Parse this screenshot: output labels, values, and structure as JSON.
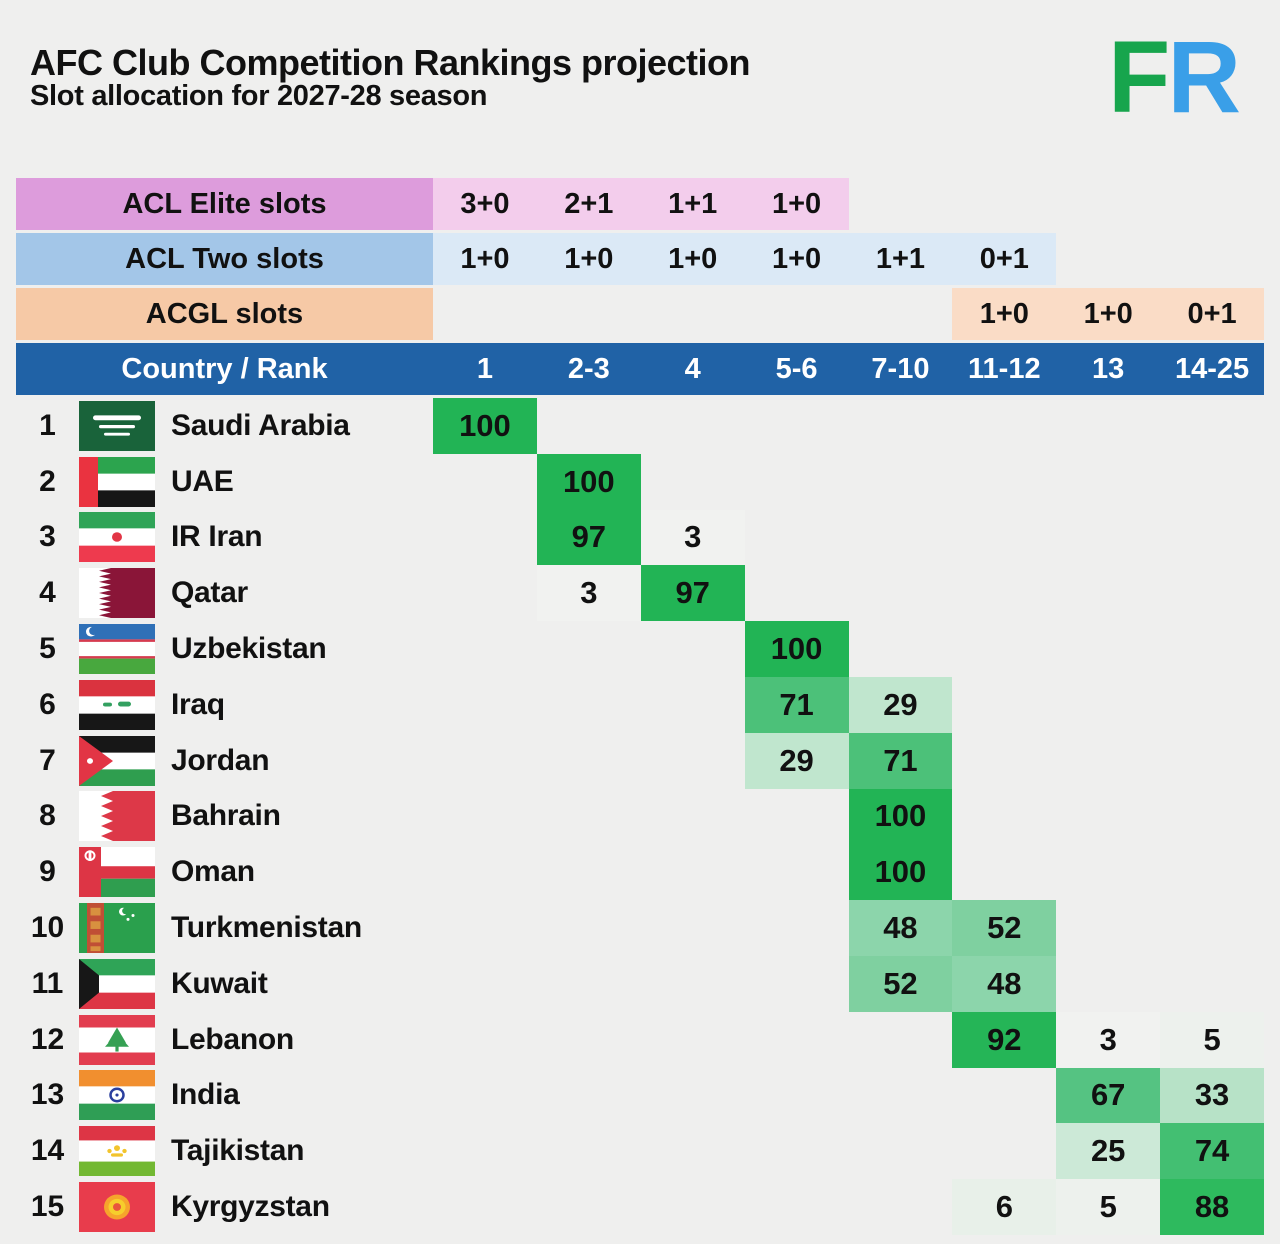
{
  "title": "AFC Club Competition Rankings projection",
  "subtitle": "Slot allocation for 2027-28 season",
  "logo": {
    "f": "F",
    "r": "R",
    "f_color": "#17a54d",
    "r_color": "#3a9fe8"
  },
  "colors": {
    "page_bg": "#efefee",
    "text": "#111111",
    "rank_header_bg": "#2062a6",
    "rank_header_text": "#ffffff",
    "value_colors": {
      "100": "#22b455",
      "97": "#22b455",
      "92": "#25b557",
      "88": "#2eba5e",
      "74": "#43bf72",
      "71": "#4cc179",
      "67": "#55c382",
      "52": "#7fd0a0",
      "48": "#8cd5ab",
      "33": "#b7e2c7",
      "29": "#c0e6ce",
      "25": "#cce9d7",
      "6": "#e8f0e9",
      "5": "#edf1ed",
      "3": "#f1f2f0"
    }
  },
  "chart_data": {
    "type": "heatmap",
    "title": "AFC Club Competition Rankings projection",
    "subtitle": "Slot allocation for 2027-28 season",
    "columns": [
      "1",
      "2-3",
      "4",
      "5-6",
      "7-10",
      "11-12",
      "13",
      "14-25"
    ],
    "rank_header_label": "Country / Rank",
    "slot_rows": [
      {
        "id": "acl-elite",
        "label": "ACL Elite slots",
        "label_bg": "#dd9cdc",
        "value_bg": "#f3cdec",
        "start_index": 0,
        "values": [
          "3+0",
          "2+1",
          "1+1",
          "1+0"
        ]
      },
      {
        "id": "acl-two",
        "label": "ACL Two slots",
        "label_bg": "#a3c6e8",
        "value_bg": "#dbe9f6",
        "start_index": 0,
        "values": [
          "1+0",
          "1+0",
          "1+0",
          "1+0",
          "1+1",
          "0+1"
        ]
      },
      {
        "id": "acgl",
        "label": "ACGL slots",
        "label_bg": "#f6c9a6",
        "value_bg": "#fadcc6",
        "start_index": 5,
        "values": [
          "1+0",
          "1+0",
          "0+1"
        ]
      }
    ],
    "rows": [
      {
        "rank": "1",
        "country": "Saudi Arabia",
        "flag": "saudi-arabia-flag",
        "values": [
          100,
          null,
          null,
          null,
          null,
          null,
          null,
          null
        ]
      },
      {
        "rank": "2",
        "country": "UAE",
        "flag": "uae-flag",
        "values": [
          null,
          100,
          null,
          null,
          null,
          null,
          null,
          null
        ]
      },
      {
        "rank": "3",
        "country": "IR Iran",
        "flag": "iran-flag",
        "values": [
          null,
          97,
          3,
          null,
          null,
          null,
          null,
          null
        ]
      },
      {
        "rank": "4",
        "country": "Qatar",
        "flag": "qatar-flag",
        "values": [
          null,
          3,
          97,
          null,
          null,
          null,
          null,
          null
        ]
      },
      {
        "rank": "5",
        "country": "Uzbekistan",
        "flag": "uzbekistan-flag",
        "values": [
          null,
          null,
          null,
          100,
          null,
          null,
          null,
          null
        ]
      },
      {
        "rank": "6",
        "country": "Iraq",
        "flag": "iraq-flag",
        "values": [
          null,
          null,
          null,
          71,
          29,
          null,
          null,
          null
        ]
      },
      {
        "rank": "7",
        "country": "Jordan",
        "flag": "jordan-flag",
        "values": [
          null,
          null,
          null,
          29,
          71,
          null,
          null,
          null
        ]
      },
      {
        "rank": "8",
        "country": "Bahrain",
        "flag": "bahrain-flag",
        "values": [
          null,
          null,
          null,
          null,
          100,
          null,
          null,
          null
        ]
      },
      {
        "rank": "9",
        "country": "Oman",
        "flag": "oman-flag",
        "values": [
          null,
          null,
          null,
          null,
          100,
          null,
          null,
          null
        ]
      },
      {
        "rank": "10",
        "country": "Turkmenistan",
        "flag": "turkmenistan-flag",
        "values": [
          null,
          null,
          null,
          null,
          48,
          52,
          null,
          null
        ]
      },
      {
        "rank": "11",
        "country": "Kuwait",
        "flag": "kuwait-flag",
        "values": [
          null,
          null,
          null,
          null,
          52,
          48,
          null,
          null
        ]
      },
      {
        "rank": "12",
        "country": "Lebanon",
        "flag": "lebanon-flag",
        "values": [
          null,
          null,
          null,
          null,
          null,
          92,
          3,
          5
        ]
      },
      {
        "rank": "13",
        "country": "India",
        "flag": "india-flag",
        "values": [
          null,
          null,
          null,
          null,
          null,
          null,
          67,
          33
        ]
      },
      {
        "rank": "14",
        "country": "Tajikistan",
        "flag": "tajikistan-flag",
        "values": [
          null,
          null,
          null,
          null,
          null,
          null,
          25,
          74
        ]
      },
      {
        "rank": "15",
        "country": "Kyrgyzstan",
        "flag": "kyrgyzstan-flag",
        "values": [
          null,
          null,
          null,
          null,
          null,
          6,
          5,
          88
        ]
      }
    ]
  }
}
